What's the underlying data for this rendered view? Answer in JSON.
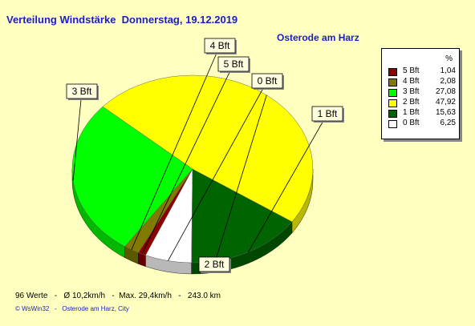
{
  "header": {
    "title": "Verteilung Windstärke  Donnerstag, 19.12.2019",
    "location": "Osterode am Harz"
  },
  "legend": {
    "unit_header": "%",
    "items": [
      {
        "label": "5 Bft",
        "value": "1,04",
        "color": "#8b0000"
      },
      {
        "label": "4 Bft",
        "value": "2,08",
        "color": "#807a00"
      },
      {
        "label": "3 Bft",
        "value": "27,08",
        "color": "#00ff00"
      },
      {
        "label": "2 Bft",
        "value": "47,92",
        "color": "#ffff00"
      },
      {
        "label": "1 Bft",
        "value": "15,63",
        "color": "#006400"
      },
      {
        "label": "0 Bft",
        "value": "6,25",
        "color": "#ffffff"
      }
    ]
  },
  "chart_data": {
    "type": "pie",
    "categories": [
      "0 Bft",
      "1 Bft",
      "2 Bft",
      "3 Bft",
      "4 Bft",
      "5 Bft"
    ],
    "values": [
      6.25,
      15.63,
      47.92,
      27.08,
      2.08,
      1.04
    ],
    "colors": [
      "#ffffff",
      "#006400",
      "#ffff00",
      "#00ff00",
      "#807a00",
      "#8b0000"
    ],
    "labels": [
      "0 Bft",
      "1 Bft",
      "2 Bft",
      "3 Bft",
      "4 Bft",
      "5 Bft"
    ],
    "title": "Verteilung Windstärke  Donnerstag, 19.12.2019"
  },
  "footer": {
    "stats": "96 Werte   -   Ø 10,2km/h   -  Max. 29,4km/h   -   243.0 km",
    "credit": "© WsWin32   -   Osterode am Harz, City"
  }
}
